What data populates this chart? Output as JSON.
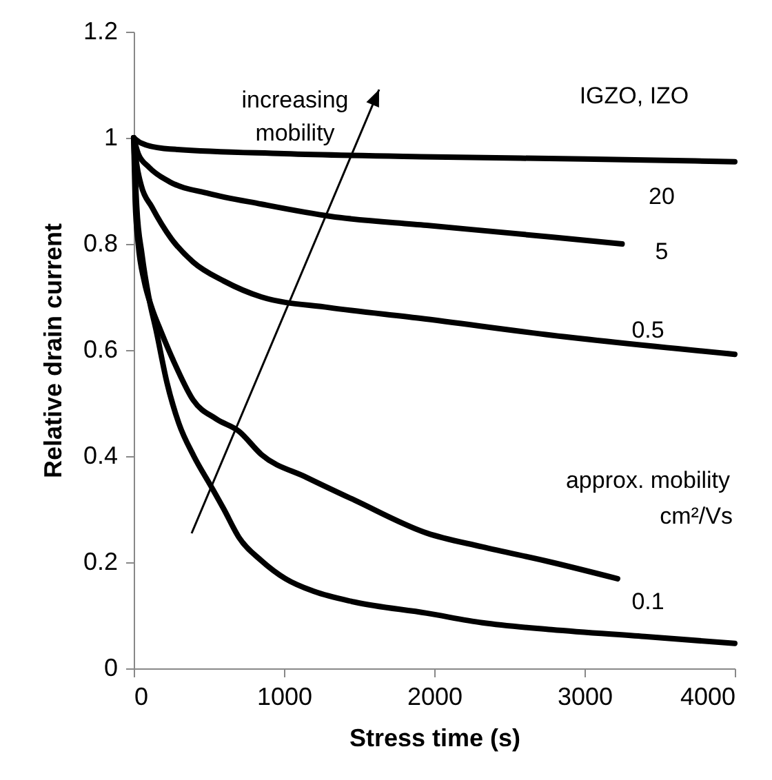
{
  "chart_data": {
    "type": "line",
    "xlabel": "Stress time (s)",
    "ylabel": "Relative drain current",
    "xlim": [
      0,
      4000
    ],
    "xticks": [
      0,
      1000,
      2000,
      3000,
      4000
    ],
    "ylim": [
      0,
      1.2
    ],
    "yticks": [
      0,
      0.2,
      0.4,
      0.6,
      0.8,
      1,
      1.2
    ],
    "grid": false,
    "legend": false,
    "marker": "none",
    "line_style": "solid",
    "series": [
      {
        "color": "#000000",
        "x": [
          0,
          50,
          200,
          1000,
          2000,
          3000,
          4000
        ],
        "values": [
          1,
          0.99,
          0.98,
          0.97,
          0.964,
          0.96,
          0.955
        ]
      },
      {
        "color": "#000000",
        "x": [
          0,
          30,
          100,
          240,
          500,
          850,
          1310,
          1950,
          2780,
          3250
        ],
        "values": [
          1,
          0.97,
          0.945,
          0.917,
          0.895,
          0.875,
          0.852,
          0.835,
          0.813,
          0.8
        ]
      },
      {
        "color": "#000000",
        "x": [
          0,
          20,
          50,
          120,
          250,
          395,
          600,
          850,
          1300,
          1900,
          2780,
          4000
        ],
        "values": [
          1,
          0.95,
          0.91,
          0.87,
          0.81,
          0.766,
          0.73,
          0.7,
          0.68,
          0.66,
          0.628,
          0.592
        ]
      },
      {
        "color": "#000000",
        "x": [
          0,
          10,
          30,
          70,
          120,
          180,
          280,
          395,
          550,
          700,
          850,
          1150,
          1470,
          1950,
          2320,
          2780,
          3220
        ],
        "values": [
          1,
          0.88,
          0.8,
          0.73,
          0.68,
          0.636,
          0.57,
          0.506,
          0.47,
          0.447,
          0.403,
          0.36,
          0.317,
          0.255,
          0.229,
          0.2,
          0.169
        ]
      },
      {
        "color": "#000000",
        "x": [
          0,
          20,
          55,
          100,
          150,
          220,
          300,
          400,
          515,
          600,
          700,
          850,
          1010,
          1200,
          1470,
          1950,
          2320,
          2780,
          3400,
          4000
        ],
        "values": [
          1,
          0.87,
          0.78,
          0.7,
          0.636,
          0.54,
          0.462,
          0.4,
          0.343,
          0.3,
          0.247,
          0.203,
          0.169,
          0.145,
          0.125,
          0.104,
          0.086,
          0.073,
          0.06,
          0.047
        ]
      }
    ],
    "annotations": [
      "increasing",
      "mobility",
      "IGZO, IZO",
      "20",
      "5",
      "0.5",
      "approx. mobility",
      "cm²/Vs",
      "0.1"
    ]
  }
}
